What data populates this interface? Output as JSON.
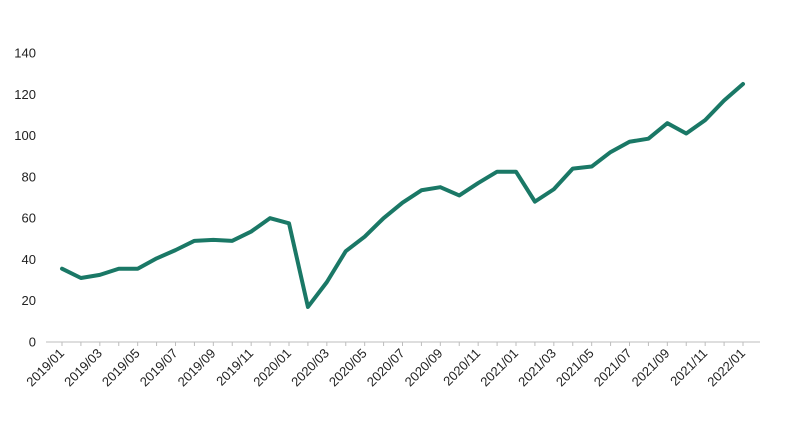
{
  "chart_data": {
    "type": "line",
    "title": "",
    "xlabel": "",
    "ylabel": "",
    "ylim": [
      0,
      140
    ],
    "yticks": [
      0,
      20,
      40,
      60,
      80,
      100,
      120,
      140
    ],
    "grid": false,
    "legend": "none",
    "x": [
      "2019/01",
      "2019/02",
      "2019/03",
      "2019/04",
      "2019/05",
      "2019/06",
      "2019/07",
      "2019/08",
      "2019/09",
      "2019/10",
      "2019/11",
      "2019/12",
      "2020/01",
      "2020/02",
      "2020/03",
      "2020/04",
      "2020/05",
      "2020/06",
      "2020/07",
      "2020/08",
      "2020/09",
      "2020/10",
      "2020/11",
      "2020/12",
      "2021/01",
      "2021/02",
      "2021/03",
      "2021/04",
      "2021/05",
      "2021/06",
      "2021/07",
      "2021/08",
      "2021/09",
      "2021/10",
      "2021/11",
      "2021/12",
      "2022/01"
    ],
    "xtick_labels": [
      "2019/01",
      "2019/03",
      "2019/05",
      "2019/07",
      "2019/09",
      "2019/11",
      "2020/01",
      "2020/03",
      "2020/05",
      "2020/07",
      "2020/09",
      "2020/11",
      "2021/01",
      "2021/03",
      "2021/05",
      "2021/07",
      "2021/09",
      "2021/11",
      "2022/01"
    ],
    "series": [
      {
        "values": [
          35.5,
          31,
          32.5,
          35.5,
          35.5,
          40.5,
          44.5,
          49,
          49.5,
          49,
          53.5,
          60,
          57.5,
          17,
          29,
          44,
          51,
          60,
          67.5,
          73.5,
          75,
          71,
          77,
          82.5,
          82.5,
          68,
          74,
          84,
          85,
          92,
          97,
          98.5,
          106,
          101,
          107.5,
          117,
          125
        ],
        "color": "#1a7866"
      }
    ]
  }
}
